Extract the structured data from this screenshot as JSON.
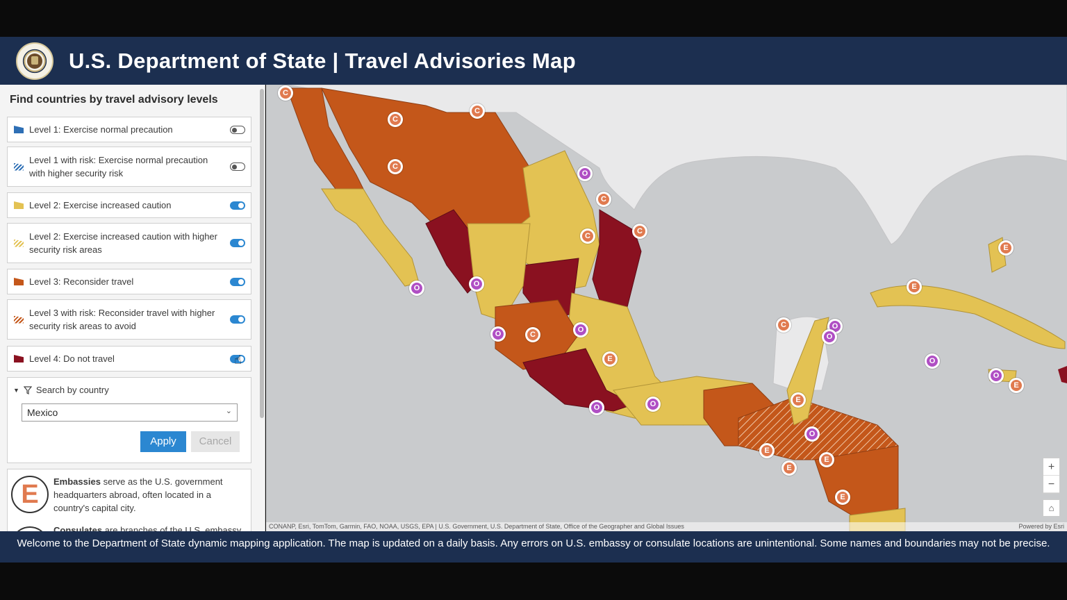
{
  "header": {
    "title": "U.S. Department of State | Travel Advisories Map",
    "seal_icon": "state-department-seal-icon"
  },
  "panel": {
    "title": "Find countries by travel advisory levels",
    "levels": [
      {
        "label": "Level 1: Exercise normal precaution",
        "color": "#2e6fb5",
        "enabled": false
      },
      {
        "label": "Level 1 with risk: Exercise normal precaution with higher security risk",
        "color": "#2e6fb5",
        "enabled": false
      },
      {
        "label": "Level 2: Exercise increased caution",
        "color": "#e3c253",
        "enabled": true
      },
      {
        "label": "Level 2: Exercise increased caution with higher security risk areas",
        "color": "#e3c253",
        "enabled": true
      },
      {
        "label": "Level 3: Reconsider travel",
        "color": "#c4571a",
        "enabled": true
      },
      {
        "label": "Level 3 with risk: Reconsider travel with higher security risk areas to avoid",
        "color": "#c4571a",
        "enabled": true
      },
      {
        "label": "Level 4: Do not travel",
        "color": "#8a1120",
        "enabled": true
      }
    ],
    "search": {
      "header": "Search by country",
      "selected_country": "Mexico",
      "apply_label": "Apply",
      "cancel_label": "Cancel"
    },
    "legend": {
      "embassy_letter": "E",
      "embassy_bold": "Embassies",
      "embassy_text": "serve as the U.S. government headquarters abroad, often located in a country's capital city.",
      "consulate_bold": "Consulates",
      "consulate_text": "are branches of the U.S. embassy"
    }
  },
  "map": {
    "attribution": "CONANP, Esri, TomTom, Garmin, FAO, NOAA, USGS, EPA | U.S. Government, U.S. Department of State, Office of the Geographer and Global Issues",
    "powered_by": "Powered by Esri",
    "zoom_in": "+",
    "zoom_out": "−",
    "home_icon": "⌂"
  },
  "footer": {
    "text": "Welcome to the Department of State dynamic mapping application. The map is updated on a daily basis.  Any errors on U.S. embassy or consulate locations are unintentional. Some names and boundaries may not be precise."
  }
}
